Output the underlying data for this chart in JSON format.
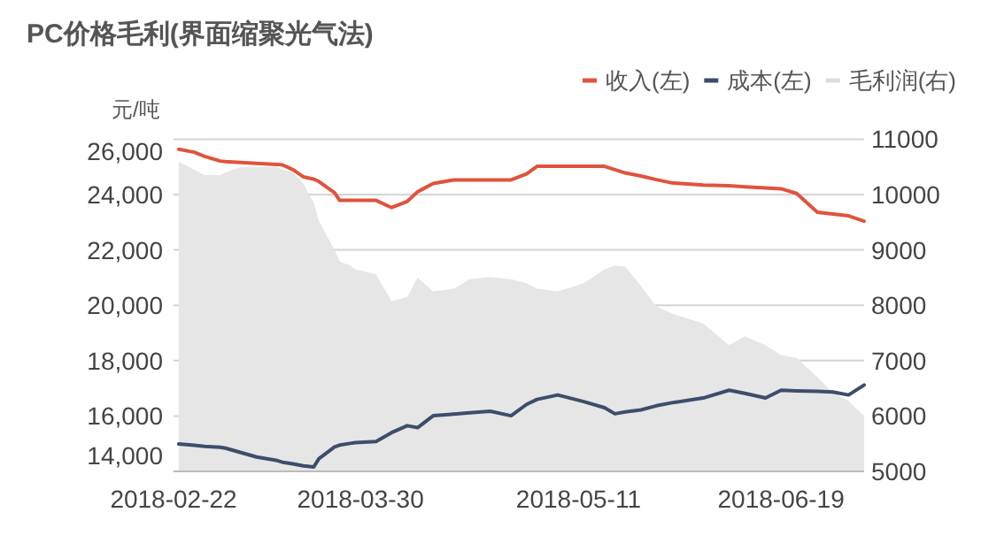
{
  "chart_data": {
    "type": "line",
    "title": "PC价格毛利(界面缩聚光气法)",
    "ylabel": "元/吨",
    "x": [
      "2018-02-23",
      "2018-02-26",
      "2018-02-28",
      "2018-03-03",
      "2018-03-04",
      "2018-03-07",
      "2018-03-10",
      "2018-03-14",
      "2018-03-15",
      "2018-03-17",
      "2018-03-19",
      "2018-03-21",
      "2018-03-22",
      "2018-03-25",
      "2018-03-26",
      "2018-03-28",
      "2018-03-29",
      "2018-04-02",
      "2018-04-05",
      "2018-04-08",
      "2018-04-10",
      "2018-04-13",
      "2018-04-17",
      "2018-04-20",
      "2018-04-24",
      "2018-04-28",
      "2018-05-01",
      "2018-05-03",
      "2018-05-07",
      "2018-05-12",
      "2018-05-16",
      "2018-05-18",
      "2018-05-20",
      "2018-05-23",
      "2018-05-26",
      "2018-05-29",
      "2018-06-04",
      "2018-06-09",
      "2018-06-12",
      "2018-06-16",
      "2018-06-19",
      "2018-06-22",
      "2018-06-26",
      "2018-06-29",
      "2018-07-02",
      "2018-07-05"
    ],
    "series": [
      {
        "name": "收入(左)",
        "color": "#e0533c",
        "values": [
          25640,
          25530,
          25380,
          25210,
          25190,
          25160,
          25130,
          25090,
          25070,
          24900,
          24640,
          24560,
          24470,
          24070,
          23790,
          23790,
          23790,
          23790,
          23530,
          23750,
          24100,
          24400,
          24530,
          24530,
          24530,
          24530,
          24750,
          25020,
          25020,
          25020,
          25020,
          24900,
          24780,
          24670,
          24540,
          24420,
          24340,
          24320,
          24280,
          24240,
          24210,
          24040,
          23360,
          23300,
          23230,
          23040
        ]
      },
      {
        "name": "成本(左)",
        "color": "#3d4d6b",
        "values": [
          14990,
          14940,
          14900,
          14870,
          14840,
          14680,
          14520,
          14390,
          14330,
          14270,
          14200,
          14160,
          14460,
          14880,
          14950,
          15010,
          15040,
          15080,
          15400,
          15650,
          15580,
          16010,
          16070,
          16120,
          16170,
          16010,
          16420,
          16600,
          16760,
          16520,
          16300,
          16080,
          16150,
          16220,
          16370,
          16480,
          16650,
          16930,
          16820,
          16650,
          16930,
          16910,
          16890,
          16870,
          16760,
          17120
        ]
      },
      {
        "name": "毛利润(右)",
        "type": "area",
        "axis": "y2",
        "color": "#e6e6e6",
        "values": [
          10590,
          10450,
          10350,
          10350,
          10400,
          10500,
          10500,
          10500,
          10450,
          10400,
          10200,
          9850,
          9520,
          9000,
          8790,
          8720,
          8650,
          8560,
          8070,
          8150,
          8500,
          8250,
          8300,
          8470,
          8510,
          8470,
          8400,
          8300,
          8250,
          8400,
          8650,
          8720,
          8700,
          8350,
          7980,
          7850,
          7670,
          7280,
          7440,
          7280,
          7100,
          7050,
          6700,
          6420,
          6270,
          6000
        ]
      }
    ],
    "xlim": [
      "2018-02-22",
      "2018-07-05"
    ],
    "xticks": [
      "2018-02-22",
      "2018-03-30",
      "2018-05-11",
      "2018-06-19"
    ],
    "ylim": [
      14000,
      26000
    ],
    "yticks": [
      {
        "value": 14000,
        "label": "14,000"
      },
      {
        "value": 16000,
        "label": "16,000"
      },
      {
        "value": 18000,
        "label": "18,000"
      },
      {
        "value": 20000,
        "label": "20,000"
      },
      {
        "value": 22000,
        "label": "22,000"
      },
      {
        "value": 24000,
        "label": "24,000"
      },
      {
        "value": 26000,
        "label": "26,000"
      }
    ],
    "y2lim": [
      5000,
      11000
    ],
    "y2ticks": [
      5000,
      6000,
      7000,
      8000,
      9000,
      10000,
      11000
    ],
    "grid": "y",
    "legend": "top right",
    "marker": "none",
    "line_style": "solid"
  }
}
